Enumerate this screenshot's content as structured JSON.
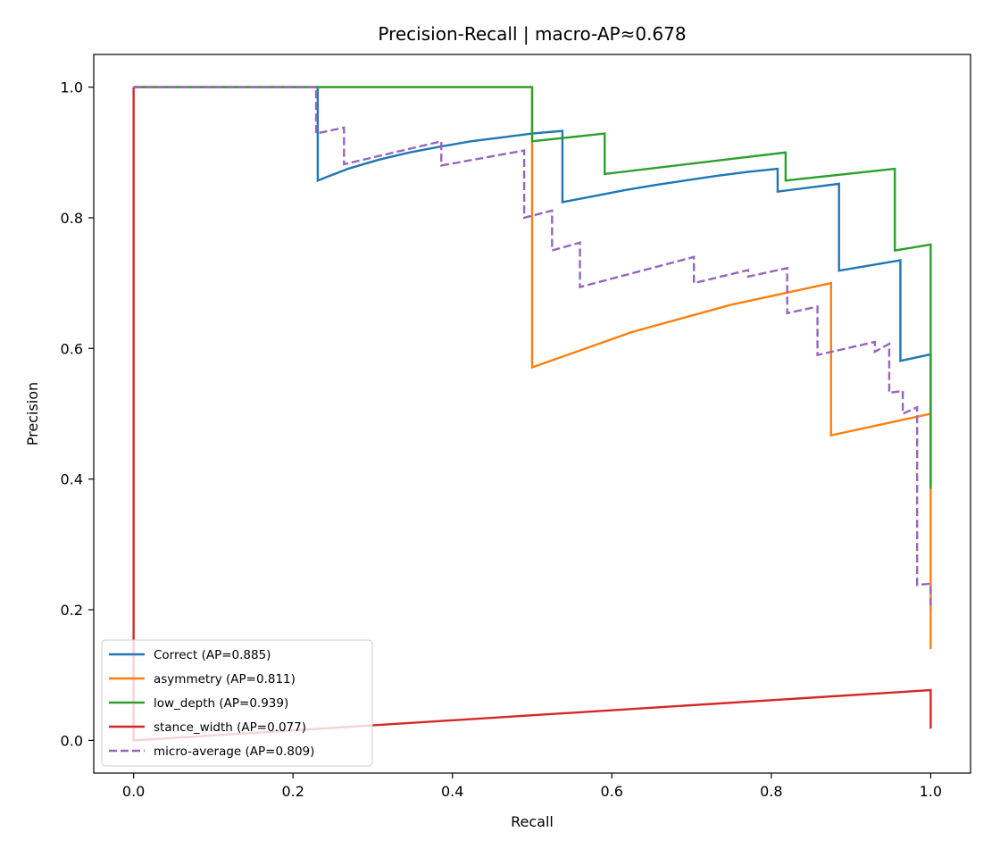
{
  "chart_data": {
    "type": "line",
    "title": "Precision-Recall | macro-AP≈0.678",
    "xlabel": "Recall",
    "ylabel": "Precision",
    "xlim": [
      -0.05,
      1.05
    ],
    "ylim": [
      -0.05,
      1.05
    ],
    "xticks": [
      0.0,
      0.2,
      0.4,
      0.6,
      0.8,
      1.0
    ],
    "xtick_labels": [
      "0.0",
      "0.2",
      "0.4",
      "0.6",
      "0.8",
      "1.0"
    ],
    "yticks": [
      0.0,
      0.2,
      0.4,
      0.6,
      0.8,
      1.0
    ],
    "ytick_labels": [
      "0.0",
      "0.2",
      "0.4",
      "0.6",
      "0.8",
      "1.0"
    ],
    "grid": false,
    "legend_position": "lower-left",
    "series": [
      {
        "name": "Correct (AP=0.885)",
        "color": "#1f77b4",
        "dash": "solid",
        "points": [
          [
            0.0,
            1.0
          ],
          [
            0.231,
            1.0
          ],
          [
            0.231,
            0.857
          ],
          [
            0.269,
            0.875
          ],
          [
            0.308,
            0.889
          ],
          [
            0.346,
            0.9
          ],
          [
            0.385,
            0.909
          ],
          [
            0.423,
            0.917
          ],
          [
            0.462,
            0.923
          ],
          [
            0.5,
            0.929
          ],
          [
            0.538,
            0.933
          ],
          [
            0.538,
            0.824
          ],
          [
            0.577,
            0.833
          ],
          [
            0.615,
            0.842
          ],
          [
            0.654,
            0.85
          ],
          [
            0.692,
            0.857
          ],
          [
            0.731,
            0.864
          ],
          [
            0.769,
            0.87
          ],
          [
            0.808,
            0.875
          ],
          [
            0.808,
            0.84
          ],
          [
            0.846,
            0.846
          ],
          [
            0.885,
            0.852
          ],
          [
            0.885,
            0.719
          ],
          [
            0.923,
            0.727
          ],
          [
            0.962,
            0.735
          ],
          [
            0.962,
            0.581
          ],
          [
            1.0,
            0.591
          ],
          [
            1.0,
            0.39
          ]
        ]
      },
      {
        "name": "asymmetry (AP=0.811)",
        "color": "#ff7f0e",
        "dash": "solid",
        "points": [
          [
            0.0,
            1.0
          ],
          [
            0.5,
            1.0
          ],
          [
            0.5,
            0.571
          ],
          [
            0.625,
            0.625
          ],
          [
            0.75,
            0.667
          ],
          [
            0.875,
            0.7
          ],
          [
            0.875,
            0.467
          ],
          [
            1.0,
            0.5
          ],
          [
            1.0,
            0.14
          ]
        ]
      },
      {
        "name": "low_depth (AP=0.939)",
        "color": "#2ca02c",
        "dash": "solid",
        "points": [
          [
            0.0,
            1.0
          ],
          [
            0.5,
            1.0
          ],
          [
            0.5,
            0.917
          ],
          [
            0.591,
            0.929
          ],
          [
            0.591,
            0.867
          ],
          [
            0.818,
            0.9
          ],
          [
            0.818,
            0.857
          ],
          [
            0.955,
            0.875
          ],
          [
            0.955,
            0.75
          ],
          [
            1.0,
            0.759
          ],
          [
            1.0,
            0.385
          ]
        ]
      },
      {
        "name": "stance_width (AP=0.077)",
        "color": "#d62728",
        "dash": "solid",
        "points": [
          [
            0.0,
            1.0
          ],
          [
            0.0,
            0.0
          ],
          [
            1.0,
            0.077
          ],
          [
            1.0,
            0.018
          ]
        ]
      },
      {
        "name": "micro-average (AP=0.809)",
        "color": "#9467bd",
        "dash": "dashed",
        "points": [
          [
            0.0,
            1.0
          ],
          [
            0.229,
            1.0
          ],
          [
            0.229,
            0.929
          ],
          [
            0.264,
            0.938
          ],
          [
            0.264,
            0.882
          ],
          [
            0.386,
            0.917
          ],
          [
            0.386,
            0.88
          ],
          [
            0.49,
            0.903
          ],
          [
            0.49,
            0.8
          ],
          [
            0.525,
            0.811
          ],
          [
            0.525,
            0.75
          ],
          [
            0.56,
            0.762
          ],
          [
            0.56,
            0.694
          ],
          [
            0.703,
            0.74
          ],
          [
            0.703,
            0.7
          ],
          [
            0.771,
            0.72
          ],
          [
            0.771,
            0.71
          ],
          [
            0.82,
            0.723
          ],
          [
            0.82,
            0.654
          ],
          [
            0.858,
            0.664
          ],
          [
            0.858,
            0.59
          ],
          [
            0.93,
            0.61
          ],
          [
            0.93,
            0.595
          ],
          [
            0.948,
            0.607
          ],
          [
            0.948,
            0.532
          ],
          [
            0.965,
            0.535
          ],
          [
            0.965,
            0.5
          ],
          [
            0.983,
            0.51
          ],
          [
            0.983,
            0.238
          ],
          [
            1.0,
            0.24
          ],
          [
            1.0,
            0.2
          ]
        ]
      }
    ]
  }
}
